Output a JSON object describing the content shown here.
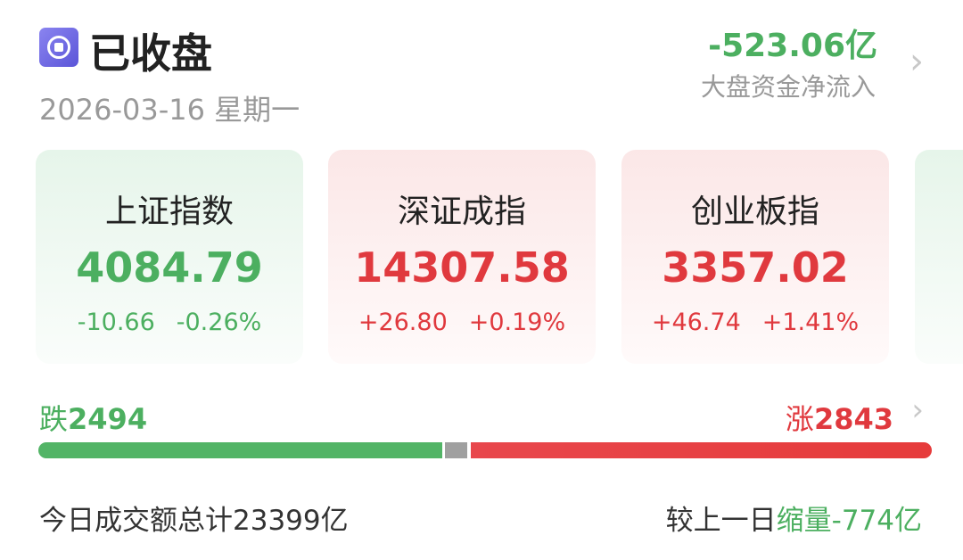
{
  "header": {
    "status": "已收盘",
    "date": "2026-03-16",
    "weekday": "星期一",
    "net_inflow": "-523.06亿",
    "net_inflow_label": "大盘资金净流入"
  },
  "indices": [
    {
      "name": "上证指数",
      "value": "4084.79",
      "change": "-10.66",
      "pct": "-0.26%",
      "trend": "down"
    },
    {
      "name": "深证成指",
      "value": "14307.58",
      "change": "+26.80",
      "pct": "+0.19%",
      "trend": "up"
    },
    {
      "name": "创业板指",
      "value": "3357.02",
      "change": "+46.74",
      "pct": "+1.41%",
      "trend": "up"
    }
  ],
  "breadth": {
    "fall_label": "跌",
    "fall_count": "2494",
    "rise_label": "涨",
    "rise_count": "2843"
  },
  "turnover": {
    "total_text": "今日成交额总计23399亿",
    "compare_prefix": "较上一日",
    "compare_value": "缩量-774亿"
  },
  "colors": {
    "up": "#e0393e",
    "down": "#4caf60",
    "flat": "#a0a0a0",
    "accent": "#6a64e4"
  }
}
